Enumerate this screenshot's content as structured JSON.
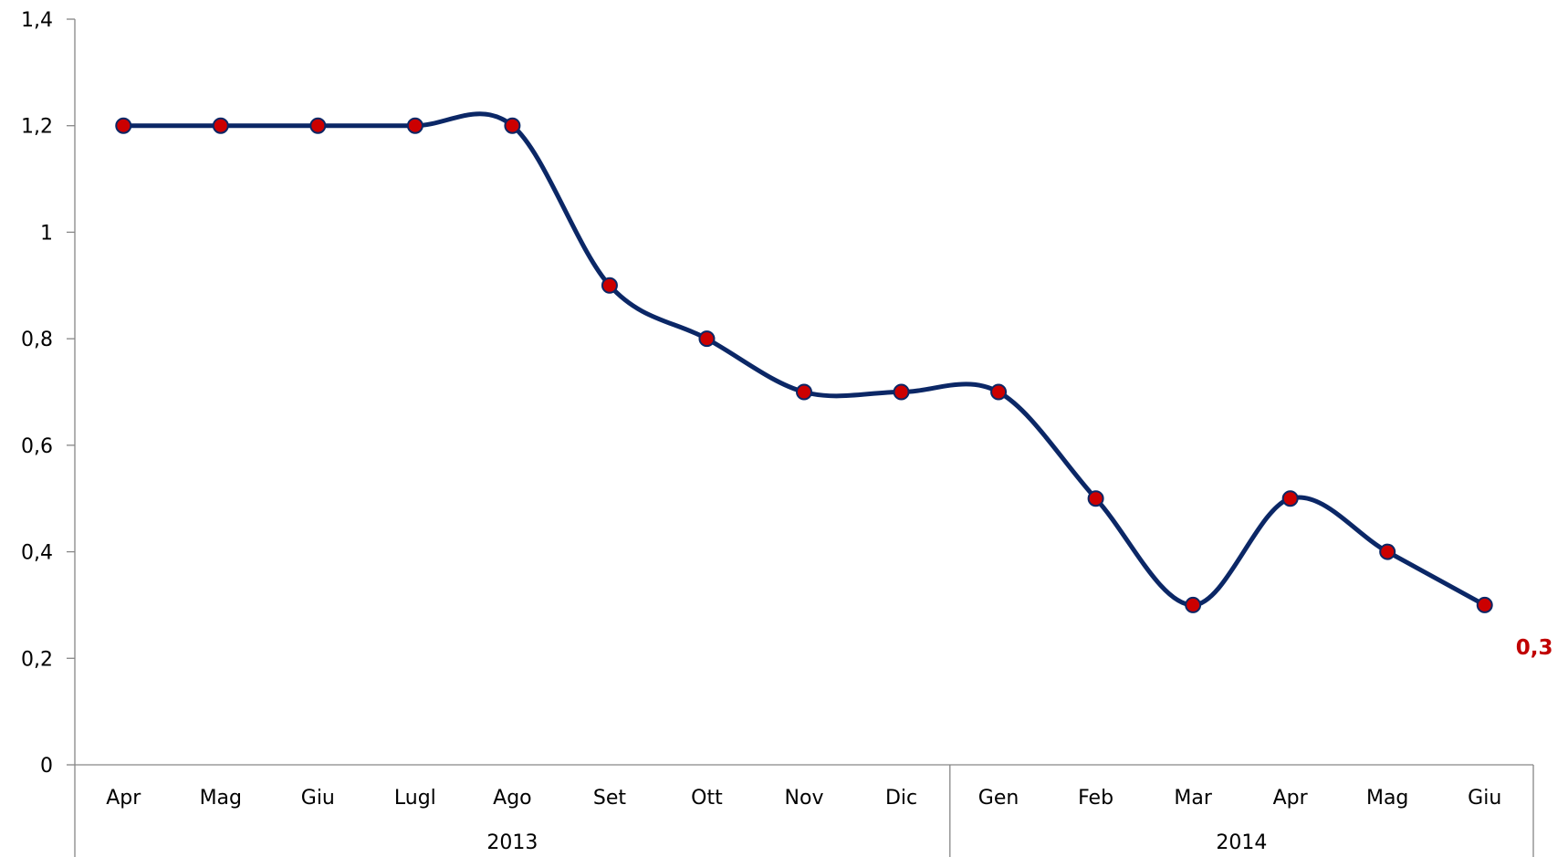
{
  "chart_data": {
    "type": "line",
    "title": "",
    "xlabel": "",
    "ylabel": "",
    "categories": [
      "Apr",
      "Mag",
      "Giu",
      "Lugl",
      "Ago",
      "Set",
      "Ott",
      "Nov",
      "Dic",
      "Gen",
      "Feb",
      "Mar",
      "Apr",
      "Mag",
      "Giu"
    ],
    "year_groups": [
      {
        "label": "2013",
        "count": 9
      },
      {
        "label": "2014",
        "count": 6
      }
    ],
    "series": [
      {
        "values": [
          1.2,
          1.2,
          1.2,
          1.2,
          1.2,
          0.9,
          0.8,
          0.7,
          0.7,
          0.7,
          0.5,
          0.3,
          0.5,
          0.4,
          0.3
        ]
      }
    ],
    "ylim": [
      0,
      1.4
    ],
    "yticks": [
      "0",
      "0,2",
      "0,4",
      "0,6",
      "0,8",
      "1",
      "1,2",
      "1,4"
    ],
    "last_value_label": "0,3",
    "smooth": true,
    "grid": false,
    "legend": "none",
    "colors": {
      "line": "#0b2766",
      "marker_fill": "#cc0000",
      "marker_stroke": "#0b2766",
      "label": "#c00000"
    }
  }
}
